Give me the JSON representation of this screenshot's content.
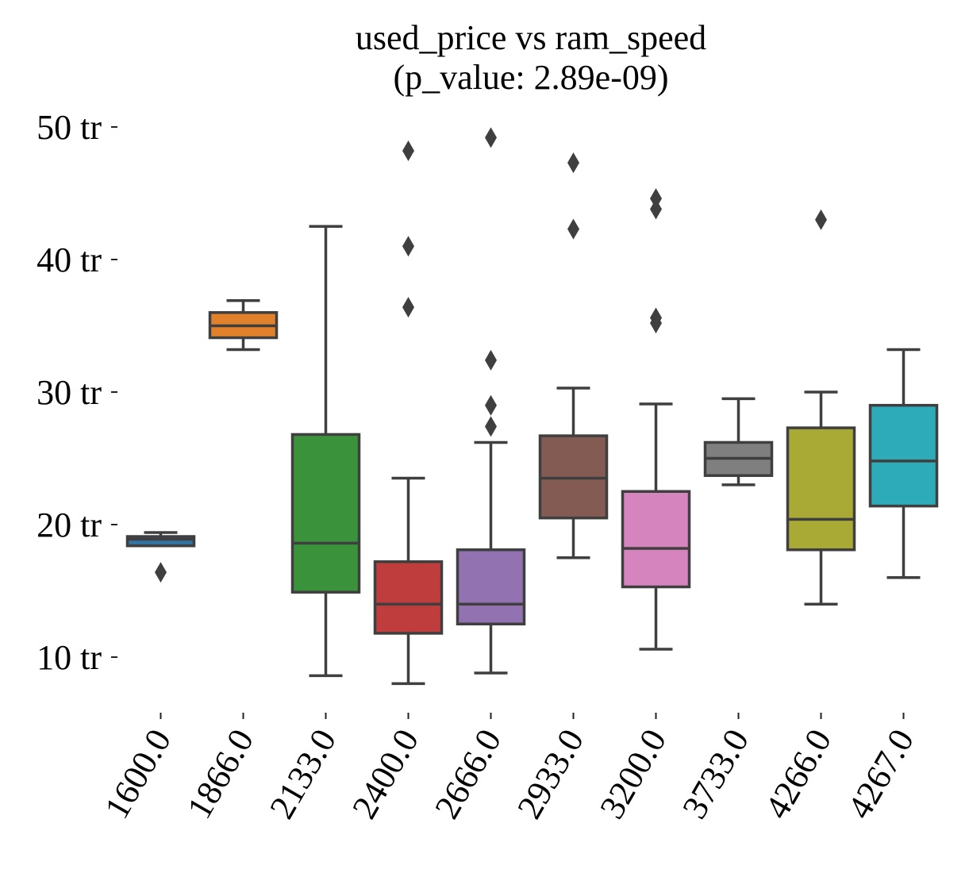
{
  "chart_data": {
    "type": "box",
    "title": "used_price vs ram_speed",
    "subtitle": "(p_value: 2.89e-09)",
    "xlabel": "",
    "ylabel": "",
    "ylim": [
      6,
      52
    ],
    "y_ticks": [
      {
        "value": 10,
        "label": "10 tr"
      },
      {
        "value": 20,
        "label": "20 tr"
      },
      {
        "value": 30,
        "label": "30 tr"
      },
      {
        "value": 40,
        "label": "40 tr"
      },
      {
        "value": 50,
        "label": "50 tr"
      }
    ],
    "grid": false,
    "categories": [
      "1600.0",
      "1866.0",
      "2133.0",
      "2400.0",
      "2666.0",
      "2933.0",
      "3200.0",
      "3733.0",
      "4266.0",
      "4267.0"
    ],
    "boxes": [
      {
        "category": "1600.0",
        "whisker_low": 18.4,
        "q1": 18.4,
        "median": 18.9,
        "q3": 19.1,
        "whisker_high": 19.4,
        "outliers": [
          16.4
        ],
        "color": "#3274a1"
      },
      {
        "category": "1866.0",
        "whisker_low": 33.2,
        "q1": 34.1,
        "median": 35.0,
        "q3": 36.0,
        "whisker_high": 36.9,
        "outliers": [],
        "color": "#e1812c"
      },
      {
        "category": "2133.0",
        "whisker_low": 8.6,
        "q1": 14.9,
        "median": 18.6,
        "q3": 26.8,
        "whisker_high": 42.5,
        "outliers": [],
        "color": "#3a923a"
      },
      {
        "category": "2400.0",
        "whisker_low": 8.0,
        "q1": 11.8,
        "median": 14.0,
        "q3": 17.2,
        "whisker_high": 23.5,
        "outliers": [
          36.4,
          41.0,
          48.2
        ],
        "color": "#c03d3e"
      },
      {
        "category": "2666.0",
        "whisker_low": 8.8,
        "q1": 12.5,
        "median": 14.0,
        "q3": 18.1,
        "whisker_high": 26.2,
        "outliers": [
          27.4,
          29.0,
          32.4,
          49.2
        ],
        "color": "#9372b2"
      },
      {
        "category": "2933.0",
        "whisker_low": 17.5,
        "q1": 20.5,
        "median": 23.5,
        "q3": 26.7,
        "whisker_high": 30.3,
        "outliers": [
          42.3,
          47.3
        ],
        "color": "#845b53"
      },
      {
        "category": "3200.0",
        "whisker_low": 10.6,
        "q1": 15.3,
        "median": 18.2,
        "q3": 22.5,
        "whisker_high": 29.1,
        "outliers": [
          35.2,
          35.6,
          43.8,
          44.6
        ],
        "color": "#d684bd"
      },
      {
        "category": "3733.0",
        "whisker_low": 23.0,
        "q1": 23.7,
        "median": 25.0,
        "q3": 26.2,
        "whisker_high": 29.5,
        "outliers": [],
        "color": "#7f7f7f"
      },
      {
        "category": "4266.0",
        "whisker_low": 14.0,
        "q1": 18.1,
        "median": 20.4,
        "q3": 27.3,
        "whisker_high": 30.0,
        "outliers": [
          43.0
        ],
        "color": "#a9aa35"
      },
      {
        "category": "4267.0",
        "whisker_low": 16.0,
        "q1": 21.4,
        "median": 24.8,
        "q3": 29.0,
        "whisker_high": 33.2,
        "outliers": [],
        "color": "#2eabb8"
      }
    ]
  }
}
